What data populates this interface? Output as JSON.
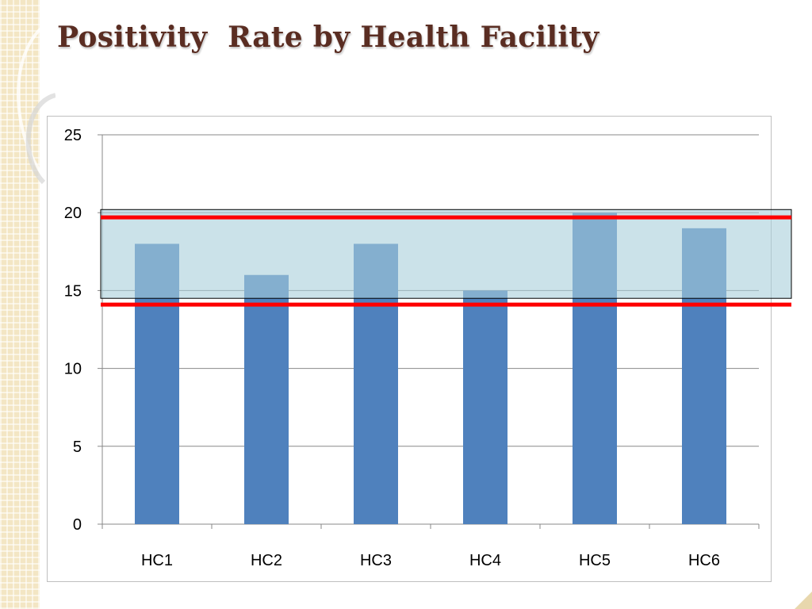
{
  "slide": {
    "title": "Positivity  Rate by Health Facility"
  },
  "colors": {
    "bar": "#4f81bd",
    "band_fill": "#a9cfdb",
    "threshold_line": "#ff0000",
    "gridline": "#888888",
    "title": "#5a2d22"
  },
  "chart_data": {
    "type": "bar",
    "title": "",
    "xlabel": "",
    "ylabel": "",
    "categories": [
      "HC1",
      "HC2",
      "HC3",
      "HC4",
      "HC5",
      "HC6"
    ],
    "values": [
      18,
      16,
      18,
      15,
      20,
      19
    ],
    "ylim": [
      0,
      25
    ],
    "yticks": [
      "0",
      "5",
      "10",
      "15",
      "20",
      "25"
    ],
    "grid": true,
    "legend": "none",
    "annotations": {
      "band_range": [
        14.5,
        20.2
      ],
      "threshold_lines": [
        14.1,
        19.7
      ]
    }
  }
}
